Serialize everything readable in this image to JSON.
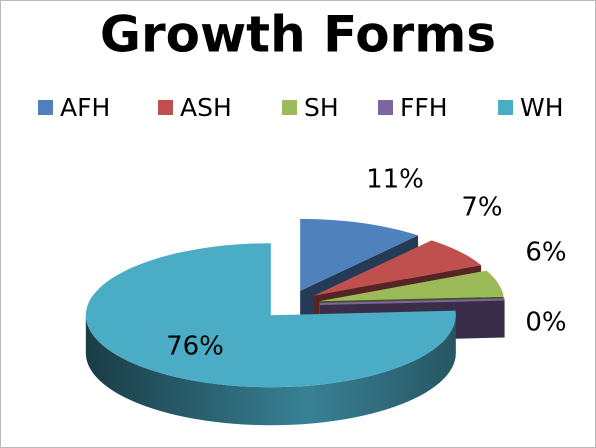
{
  "chart_data": {
    "type": "pie",
    "title": "Growth Forms",
    "categories": [
      "AFH",
      "ASH",
      "SH",
      "FFH",
      "WH"
    ],
    "values": [
      11,
      7,
      6,
      0,
      76
    ],
    "value_labels": [
      "11%",
      "7%",
      "6%",
      "0%",
      "76%"
    ],
    "colors": [
      "#4f81bd",
      "#c0504d",
      "#9bbb59",
      "#8064a2",
      "#4bacc6"
    ],
    "legend": "top"
  }
}
